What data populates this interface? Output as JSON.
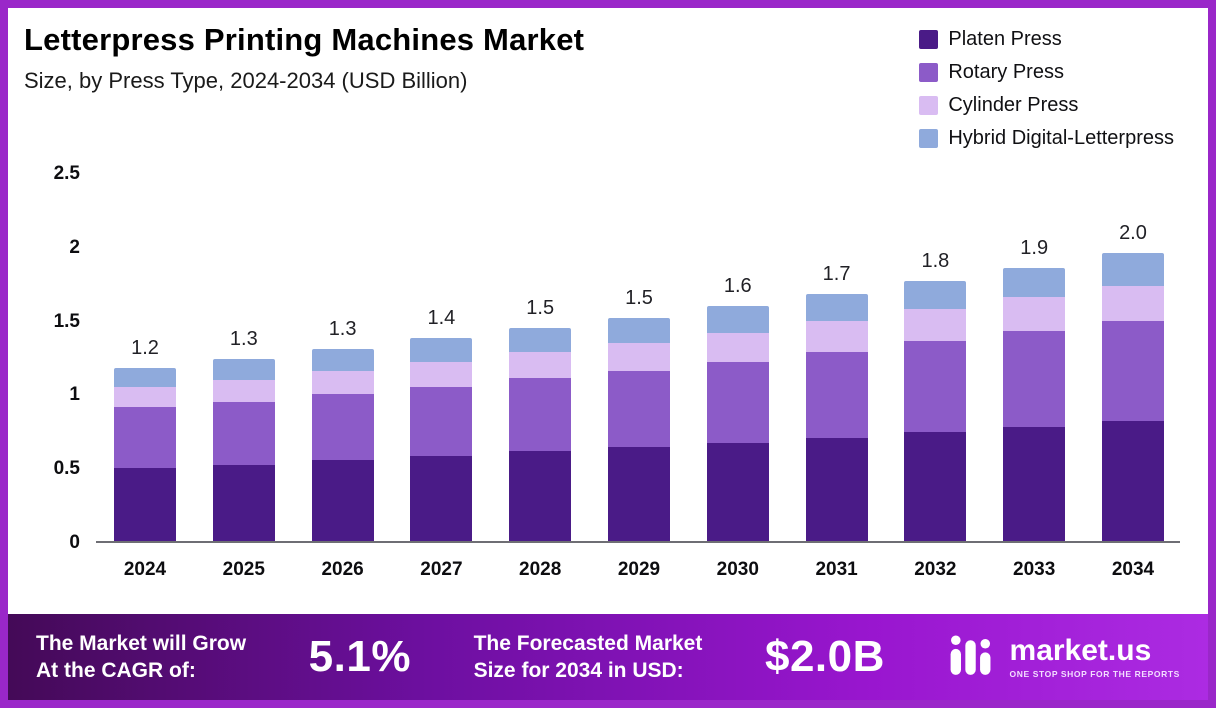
{
  "chart_data": {
    "type": "bar",
    "stacked": true,
    "title": "Letterpress Printing Machines Market",
    "subtitle": "Size, by Press Type, 2024-2034 (USD Billion)",
    "xlabel": "",
    "ylabel": "USD Billion",
    "ylim": [
      0,
      2.5
    ],
    "grid": false,
    "legend_position": "top-right",
    "categories": [
      "2024",
      "2025",
      "2026",
      "2027",
      "2028",
      "2029",
      "2030",
      "2031",
      "2032",
      "2033",
      "2034"
    ],
    "yticks": [
      {
        "v": 0,
        "label": "0"
      },
      {
        "v": 0.5,
        "label": "0.5"
      },
      {
        "v": 1,
        "label": "1"
      },
      {
        "v": 1.5,
        "label": "1.5"
      },
      {
        "v": 2,
        "label": "2"
      },
      {
        "v": 2.5,
        "label": "2.5"
      }
    ],
    "series": [
      {
        "name": "Platen Press",
        "color": "#4A1B87",
        "values": [
          0.5,
          0.52,
          0.55,
          0.58,
          0.61,
          0.64,
          0.67,
          0.7,
          0.74,
          0.78,
          0.82
        ]
      },
      {
        "name": "Rotary Press",
        "color": "#8C5BC8",
        "values": [
          0.41,
          0.43,
          0.45,
          0.47,
          0.5,
          0.52,
          0.55,
          0.59,
          0.62,
          0.65,
          0.68
        ]
      },
      {
        "name": "Cylinder Press",
        "color": "#D9BCF2",
        "values": [
          0.14,
          0.15,
          0.16,
          0.17,
          0.18,
          0.19,
          0.2,
          0.21,
          0.22,
          0.23,
          0.24
        ]
      },
      {
        "name": "Hybrid Digital-Letterpress",
        "color": "#8FAADC",
        "values": [
          0.13,
          0.14,
          0.15,
          0.16,
          0.16,
          0.17,
          0.18,
          0.18,
          0.19,
          0.2,
          0.22
        ]
      }
    ],
    "totals_display": [
      "1.2",
      "1.3",
      "1.3",
      "1.4",
      "1.5",
      "1.5",
      "1.6",
      "1.7",
      "1.8",
      "1.9",
      "2.0"
    ]
  },
  "banner": {
    "cagr_label": "The Market will Grow\nAt the CAGR of:",
    "cagr_value": "5.1%",
    "forecast_label": "The Forecasted Market\nSize for 2034 in USD:",
    "forecast_value": "$2.0B",
    "brand_name": "market.us",
    "brand_tagline": "ONE STOP SHOP FOR THE REPORTS"
  },
  "colors": {
    "frame_border": "#9A27C9",
    "banner_gradient_start": "#440a57",
    "banner_gradient_end": "#ac2be2"
  }
}
